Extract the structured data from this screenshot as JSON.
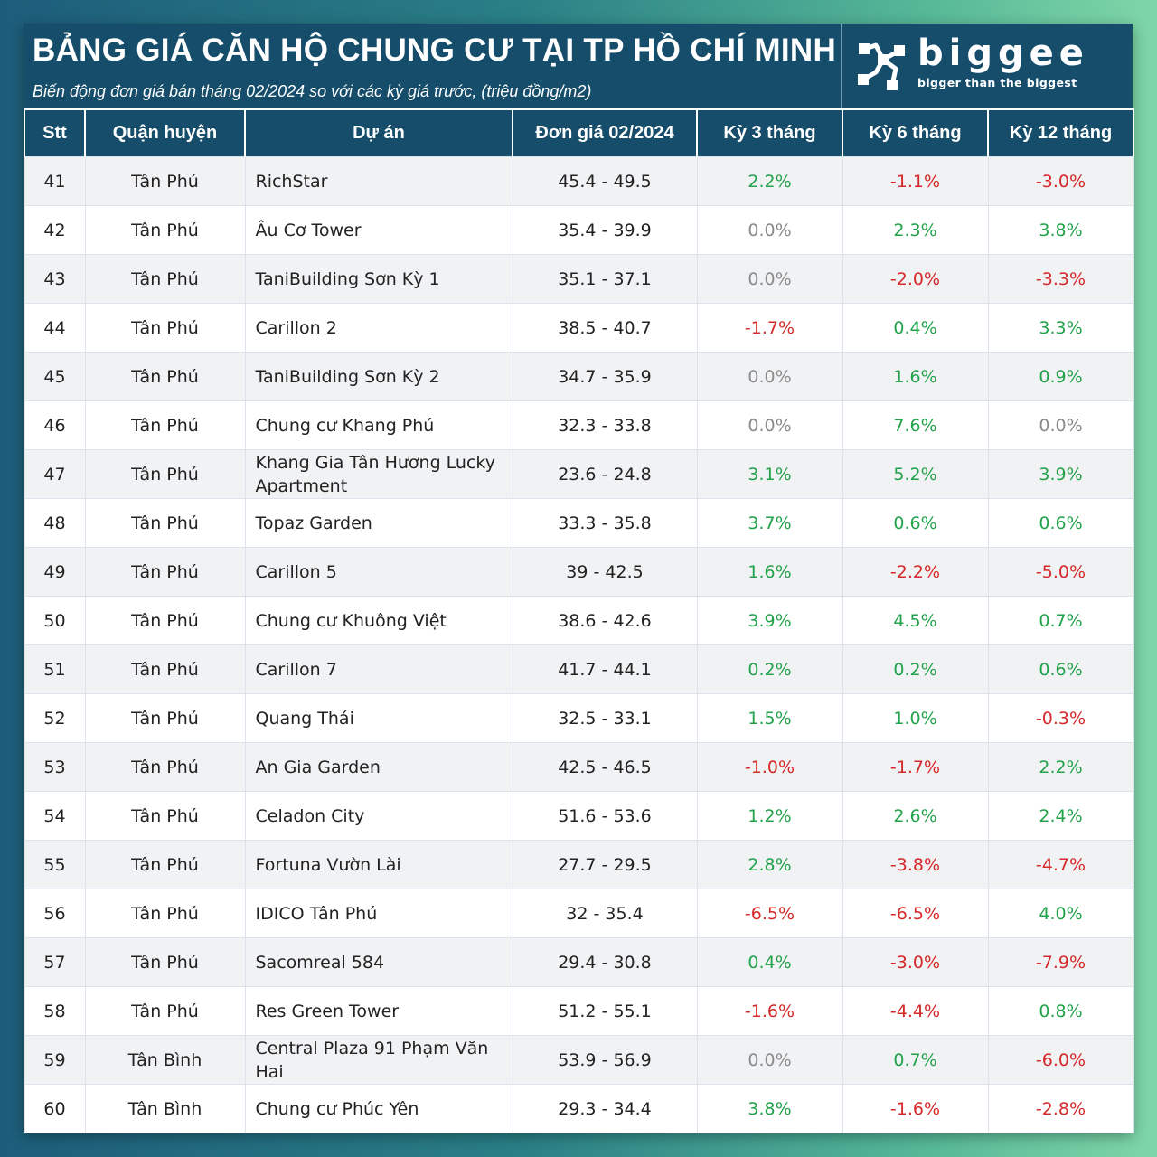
{
  "header": {
    "title": "BẢNG GIÁ CĂN HỘ CHUNG CƯ TẠI TP HỒ CHÍ MINH",
    "subtitle": "Biến động đơn giá bán tháng 02/2024 so với các kỳ giá trước, (triệu đồng/m2)"
  },
  "logo": {
    "name": "biggee",
    "tagline": "bigger than the biggest"
  },
  "colors": {
    "header_bg": "#154d6a",
    "positive": "#22a24a",
    "negative": "#d42a2a",
    "zero": "#8a8a8a"
  },
  "table": {
    "columns": [
      "Stt",
      "Quận huyện",
      "Dự án",
      "Đơn giá 02/2024",
      "Kỳ 3 tháng",
      "Kỳ 6 tháng",
      "Kỳ 12 tháng"
    ],
    "rows": [
      [
        "41",
        "Tân Phú",
        "RichStar",
        "45.4 - 49.5",
        "2.2%",
        "-1.1%",
        "-3.0%"
      ],
      [
        "42",
        "Tân Phú",
        "Âu Cơ Tower",
        "35.4 - 39.9",
        "0.0%",
        "2.3%",
        "3.8%"
      ],
      [
        "43",
        "Tân Phú",
        "TaniBuilding Sơn Kỳ 1",
        "35.1 - 37.1",
        "0.0%",
        "-2.0%",
        "-3.3%"
      ],
      [
        "44",
        "Tân Phú",
        "Carillon 2",
        "38.5 - 40.7",
        "-1.7%",
        "0.4%",
        "3.3%"
      ],
      [
        "45",
        "Tân Phú",
        "TaniBuilding Sơn Kỳ 2",
        "34.7 - 35.9",
        "0.0%",
        "1.6%",
        "0.9%"
      ],
      [
        "46",
        "Tân Phú",
        "Chung cư Khang Phú",
        "32.3 - 33.8",
        "0.0%",
        "7.6%",
        "0.0%"
      ],
      [
        "47",
        "Tân Phú",
        "Khang Gia Tân Hương Lucky Apartment",
        "23.6 - 24.8",
        "3.1%",
        "5.2%",
        "3.9%"
      ],
      [
        "48",
        "Tân Phú",
        "Topaz Garden",
        "33.3 - 35.8",
        "3.7%",
        "0.6%",
        "0.6%"
      ],
      [
        "49",
        "Tân Phú",
        "Carillon 5",
        "39 - 42.5",
        "1.6%",
        "-2.2%",
        "-5.0%"
      ],
      [
        "50",
        "Tân Phú",
        "Chung cư Khuông Việt",
        "38.6 - 42.6",
        "3.9%",
        "4.5%",
        "0.7%"
      ],
      [
        "51",
        "Tân Phú",
        "Carillon 7",
        "41.7 - 44.1",
        "0.2%",
        "0.2%",
        "0.6%"
      ],
      [
        "52",
        "Tân Phú",
        "Quang Thái",
        "32.5 - 33.1",
        "1.5%",
        "1.0%",
        "-0.3%"
      ],
      [
        "53",
        "Tân Phú",
        "An Gia Garden",
        "42.5 - 46.5",
        "-1.0%",
        "-1.7%",
        "2.2%"
      ],
      [
        "54",
        "Tân Phú",
        "Celadon City",
        "51.6 - 53.6",
        "1.2%",
        "2.6%",
        "2.4%"
      ],
      [
        "55",
        "Tân Phú",
        "Fortuna Vườn Lài",
        "27.7 - 29.5",
        "2.8%",
        "-3.8%",
        "-4.7%"
      ],
      [
        "56",
        "Tân Phú",
        "IDICO Tân Phú",
        "32 - 35.4",
        "-6.5%",
        "-6.5%",
        "4.0%"
      ],
      [
        "57",
        "Tân Phú",
        "Sacomreal 584",
        "29.4 - 30.8",
        "0.4%",
        "-3.0%",
        "-7.9%"
      ],
      [
        "58",
        "Tân Phú",
        "Res Green Tower",
        "51.2 - 55.1",
        "-1.6%",
        "-4.4%",
        "0.8%"
      ],
      [
        "59",
        "Tân Bình",
        "Central Plaza 91 Phạm Văn Hai",
        "53.9 - 56.9",
        "0.0%",
        "0.7%",
        "-6.0%"
      ],
      [
        "60",
        "Tân Bình",
        "Chung cư Phúc Yên",
        "29.3 - 34.4",
        "3.8%",
        "-1.6%",
        "-2.8%"
      ]
    ]
  }
}
